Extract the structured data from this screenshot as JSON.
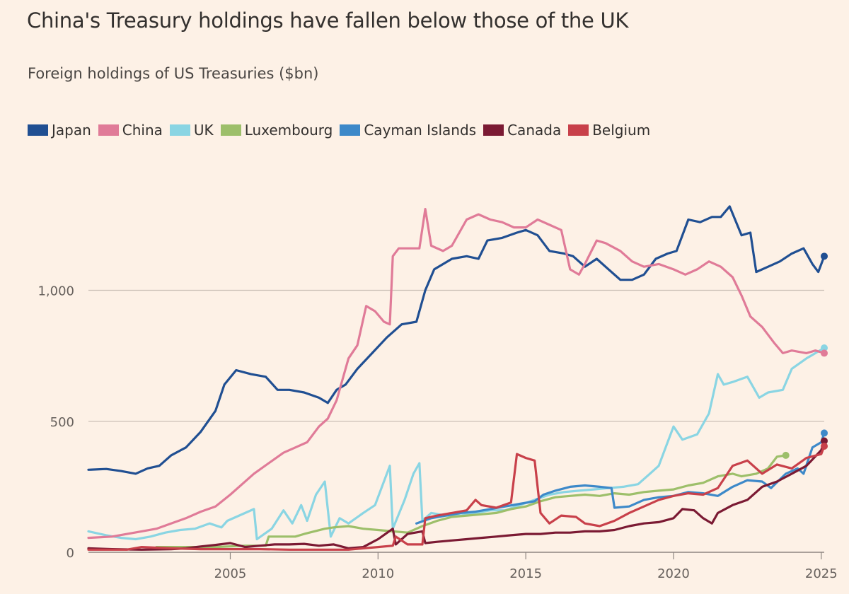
{
  "chart_data": {
    "type": "line",
    "title": "China's Treasury holdings have fallen below those of the UK",
    "subtitle": "Foreign holdings of US Treasuries ($bn)",
    "xlabel": "",
    "ylabel": "",
    "xlim": [
      2000.2,
      2025.1
    ],
    "ylim": [
      0,
      1350
    ],
    "grid": true,
    "legend_position": "top-left",
    "x_ticks": [
      2005,
      2010,
      2015,
      2020,
      2025
    ],
    "x_tick_labels": [
      "2005",
      "2010",
      "2015",
      "2020",
      "2025"
    ],
    "y_ticks": [
      0,
      500,
      1000
    ],
    "y_tick_labels": [
      "0",
      "500",
      "1,000"
    ],
    "series": [
      {
        "name": "UK",
        "color": "#8ad5e3",
        "x": [
          2000.2,
          2000.8,
          2001.3,
          2001.8,
          2002.3,
          2002.8,
          2003.3,
          2003.8,
          2004.3,
          2004.7,
          2004.9,
          2005.3,
          2005.8,
          2005.9,
          2006.4,
          2006.8,
          2007.1,
          2007.4,
          2007.6,
          2007.9,
          2008.2,
          2008.4,
          2008.7,
          2009.0,
          2009.5,
          2009.9,
          2010.4,
          2010.5,
          2010.9,
          2011.2,
          2011.4,
          2011.5,
          2011.8,
          2012.3,
          2012.8,
          2013.3,
          2013.8,
          2014.3,
          2014.8,
          2015.3,
          2015.8,
          2016.3,
          2016.8,
          2017.3,
          2017.8,
          2018.3,
          2018.8,
          2019.2,
          2019.5,
          2019.8,
          2020.0,
          2020.3,
          2020.8,
          2021.2,
          2021.5,
          2021.7,
          2022.0,
          2022.5,
          2022.9,
          2023.2,
          2023.7,
          2024.0,
          2024.5,
          2024.8,
          2025.1
        ],
        "values": [
          80,
          65,
          55,
          50,
          60,
          75,
          85,
          90,
          110,
          95,
          120,
          140,
          165,
          50,
          90,
          160,
          110,
          180,
          120,
          220,
          270,
          60,
          130,
          110,
          150,
          180,
          330,
          90,
          200,
          300,
          340,
          120,
          150,
          140,
          140,
          150,
          160,
          160,
          180,
          200,
          220,
          230,
          235,
          240,
          245,
          250,
          260,
          300,
          330,
          420,
          480,
          430,
          450,
          530,
          680,
          640,
          650,
          670,
          590,
          610,
          620,
          700,
          740,
          760,
          780
        ]
      },
      {
        "name": "Luxembourg",
        "color": "#9dbf6a",
        "x": [
          2002.5,
          2003.5,
          2004.5,
          2005.5,
          2006.2,
          2006.3,
          2007.2,
          2007.5,
          2008.2,
          2008.5,
          2009.0,
          2009.5,
          2010.0,
          2010.5,
          2011.0,
          2011.5,
          2012.0,
          2012.5,
          2013.0,
          2013.5,
          2014.0,
          2014.5,
          2015.0,
          2015.5,
          2016.0,
          2016.5,
          2017.0,
          2017.5,
          2018.0,
          2018.5,
          2019.0,
          2019.5,
          2020.0,
          2020.5,
          2021.0,
          2021.5,
          2022.0,
          2022.3,
          2022.8,
          2023.2,
          2023.5,
          2023.8
        ],
        "values": [
          20,
          20,
          20,
          25,
          25,
          60,
          60,
          70,
          90,
          95,
          100,
          90,
          85,
          80,
          75,
          100,
          120,
          135,
          140,
          145,
          150,
          165,
          175,
          195,
          210,
          215,
          220,
          215,
          225,
          220,
          230,
          235,
          240,
          255,
          265,
          290,
          300,
          290,
          300,
          320,
          365,
          370
        ]
      },
      {
        "name": "Cayman Islands",
        "color": "#3d89c9",
        "x": [
          2011.3,
          2011.8,
          2012.3,
          2012.8,
          2013.3,
          2013.8,
          2014.3,
          2014.8,
          2015.3,
          2015.6,
          2016.0,
          2016.5,
          2017.0,
          2017.5,
          2017.9,
          2018.0,
          2018.5,
          2019.0,
          2019.5,
          2020.0,
          2020.5,
          2021.0,
          2021.5,
          2022.0,
          2022.5,
          2023.0,
          2023.3,
          2023.8,
          2024.2,
          2024.4,
          2024.7,
          2025.0,
          2025.1
        ],
        "values": [
          110,
          130,
          140,
          150,
          155,
          165,
          175,
          185,
          195,
          220,
          235,
          250,
          255,
          250,
          245,
          170,
          175,
          200,
          210,
          215,
          230,
          225,
          215,
          250,
          275,
          270,
          245,
          300,
          320,
          300,
          400,
          420,
          455
        ]
      },
      {
        "name": "Canada",
        "color": "#7b1a33",
        "x": [
          2000.2,
          2001.0,
          2002.0,
          2003.0,
          2003.5,
          2004.0,
          2004.5,
          2005.0,
          2005.5,
          2006.0,
          2006.5,
          2007.0,
          2007.5,
          2008.0,
          2008.5,
          2009.0,
          2009.5,
          2010.0,
          2010.5,
          2010.6,
          2011.0,
          2011.5,
          2011.6,
          2012.0,
          2012.5,
          2013.0,
          2013.5,
          2014.0,
          2014.5,
          2015.0,
          2015.5,
          2016.0,
          2016.5,
          2017.0,
          2017.5,
          2018.0,
          2018.5,
          2019.0,
          2019.5,
          2020.0,
          2020.3,
          2020.7,
          2021.0,
          2021.3,
          2021.5,
          2022.0,
          2022.5,
          2023.0,
          2023.5,
          2024.0,
          2024.5,
          2025.0,
          2025.1
        ],
        "values": [
          15,
          12,
          10,
          12,
          15,
          22,
          28,
          35,
          20,
          25,
          30,
          30,
          32,
          25,
          30,
          15,
          20,
          50,
          90,
          30,
          70,
          80,
          35,
          40,
          45,
          50,
          55,
          60,
          65,
          70,
          70,
          75,
          75,
          80,
          80,
          85,
          100,
          110,
          115,
          130,
          165,
          160,
          130,
          110,
          150,
          180,
          200,
          250,
          270,
          300,
          330,
          390,
          425
        ]
      },
      {
        "name": "Belgium",
        "color": "#c8404a",
        "x": [
          2000.2,
          2001.5,
          2002.0,
          2003.0,
          2004.0,
          2005.0,
          2006.0,
          2007.0,
          2008.0,
          2009.0,
          2009.5,
          2010.0,
          2010.5,
          2010.6,
          2011.0,
          2011.5,
          2011.6,
          2012.0,
          2012.5,
          2013.0,
          2013.3,
          2013.5,
          2014.0,
          2014.5,
          2014.7,
          2015.0,
          2015.3,
          2015.5,
          2015.8,
          2016.2,
          2016.7,
          2017.0,
          2017.5,
          2018.0,
          2018.5,
          2019.0,
          2019.5,
          2020.0,
          2020.5,
          2021.0,
          2021.5,
          2022.0,
          2022.5,
          2023.0,
          2023.5,
          2024.0,
          2024.5,
          2025.0,
          2025.1
        ],
        "values": [
          10,
          10,
          20,
          15,
          12,
          12,
          12,
          10,
          10,
          10,
          15,
          20,
          25,
          60,
          30,
          30,
          130,
          140,
          150,
          160,
          200,
          180,
          170,
          190,
          375,
          360,
          350,
          150,
          110,
          140,
          135,
          110,
          100,
          120,
          150,
          175,
          200,
          215,
          225,
          220,
          245,
          330,
          350,
          300,
          335,
          320,
          360,
          375,
          405
        ]
      },
      {
        "name": "Japan",
        "color": "#204f92",
        "x": [
          2000.2,
          2000.8,
          2001.3,
          2001.8,
          2002.2,
          2002.6,
          2003.0,
          2003.5,
          2004.0,
          2004.5,
          2004.8,
          2005.2,
          2005.7,
          2006.2,
          2006.6,
          2007.0,
          2007.5,
          2008.0,
          2008.3,
          2008.6,
          2008.9,
          2009.3,
          2009.8,
          2010.3,
          2010.8,
          2011.3,
          2011.6,
          2011.9,
          2012.5,
          2013.0,
          2013.4,
          2013.7,
          2014.2,
          2014.7,
          2015.0,
          2015.4,
          2015.8,
          2016.3,
          2016.6,
          2017.0,
          2017.4,
          2017.8,
          2018.2,
          2018.6,
          2019.0,
          2019.4,
          2019.8,
          2020.1,
          2020.5,
          2020.9,
          2021.3,
          2021.6,
          2021.9,
          2022.3,
          2022.6,
          2022.8,
          2023.2,
          2023.6,
          2024.0,
          2024.4,
          2024.7,
          2024.9,
          2025.1
        ],
        "values": [
          315,
          318,
          310,
          300,
          320,
          330,
          370,
          400,
          460,
          540,
          640,
          695,
          680,
          670,
          620,
          620,
          610,
          590,
          570,
          620,
          640,
          700,
          760,
          820,
          870,
          880,
          1000,
          1080,
          1120,
          1130,
          1120,
          1190,
          1200,
          1220,
          1230,
          1210,
          1150,
          1140,
          1130,
          1090,
          1120,
          1080,
          1040,
          1040,
          1060,
          1120,
          1140,
          1150,
          1270,
          1260,
          1280,
          1280,
          1320,
          1210,
          1220,
          1070,
          1090,
          1110,
          1140,
          1160,
          1100,
          1070,
          1130
        ]
      },
      {
        "name": "China",
        "color": "#e07b98",
        "x": [
          2000.2,
          2001.0,
          2002.0,
          2002.5,
          2003.0,
          2003.5,
          2004.0,
          2004.5,
          2005.0,
          2005.3,
          2005.8,
          2006.3,
          2006.8,
          2007.2,
          2007.6,
          2008.0,
          2008.3,
          2008.6,
          2009.0,
          2009.3,
          2009.6,
          2009.9,
          2010.2,
          2010.4,
          2010.5,
          2010.7,
          2011.0,
          2011.4,
          2011.6,
          2011.8,
          2012.2,
          2012.5,
          2013.0,
          2013.4,
          2013.8,
          2014.2,
          2014.6,
          2015.0,
          2015.4,
          2015.8,
          2016.2,
          2016.5,
          2016.8,
          2017.0,
          2017.4,
          2017.7,
          2018.2,
          2018.6,
          2019.0,
          2019.5,
          2020.0,
          2020.4,
          2020.8,
          2021.2,
          2021.6,
          2022.0,
          2022.3,
          2022.6,
          2023.0,
          2023.4,
          2023.7,
          2024.0,
          2024.5,
          2024.8,
          2025.1
        ],
        "values": [
          55,
          60,
          80,
          90,
          110,
          130,
          155,
          175,
          220,
          250,
          300,
          340,
          380,
          400,
          420,
          480,
          510,
          580,
          740,
          790,
          940,
          920,
          880,
          870,
          1130,
          1160,
          1160,
          1160,
          1310,
          1170,
          1150,
          1170,
          1270,
          1290,
          1270,
          1260,
          1240,
          1240,
          1270,
          1250,
          1230,
          1080,
          1060,
          1100,
          1190,
          1180,
          1150,
          1110,
          1090,
          1100,
          1080,
          1060,
          1080,
          1110,
          1090,
          1050,
          980,
          900,
          860,
          800,
          760,
          770,
          760,
          770,
          760
        ]
      }
    ]
  }
}
